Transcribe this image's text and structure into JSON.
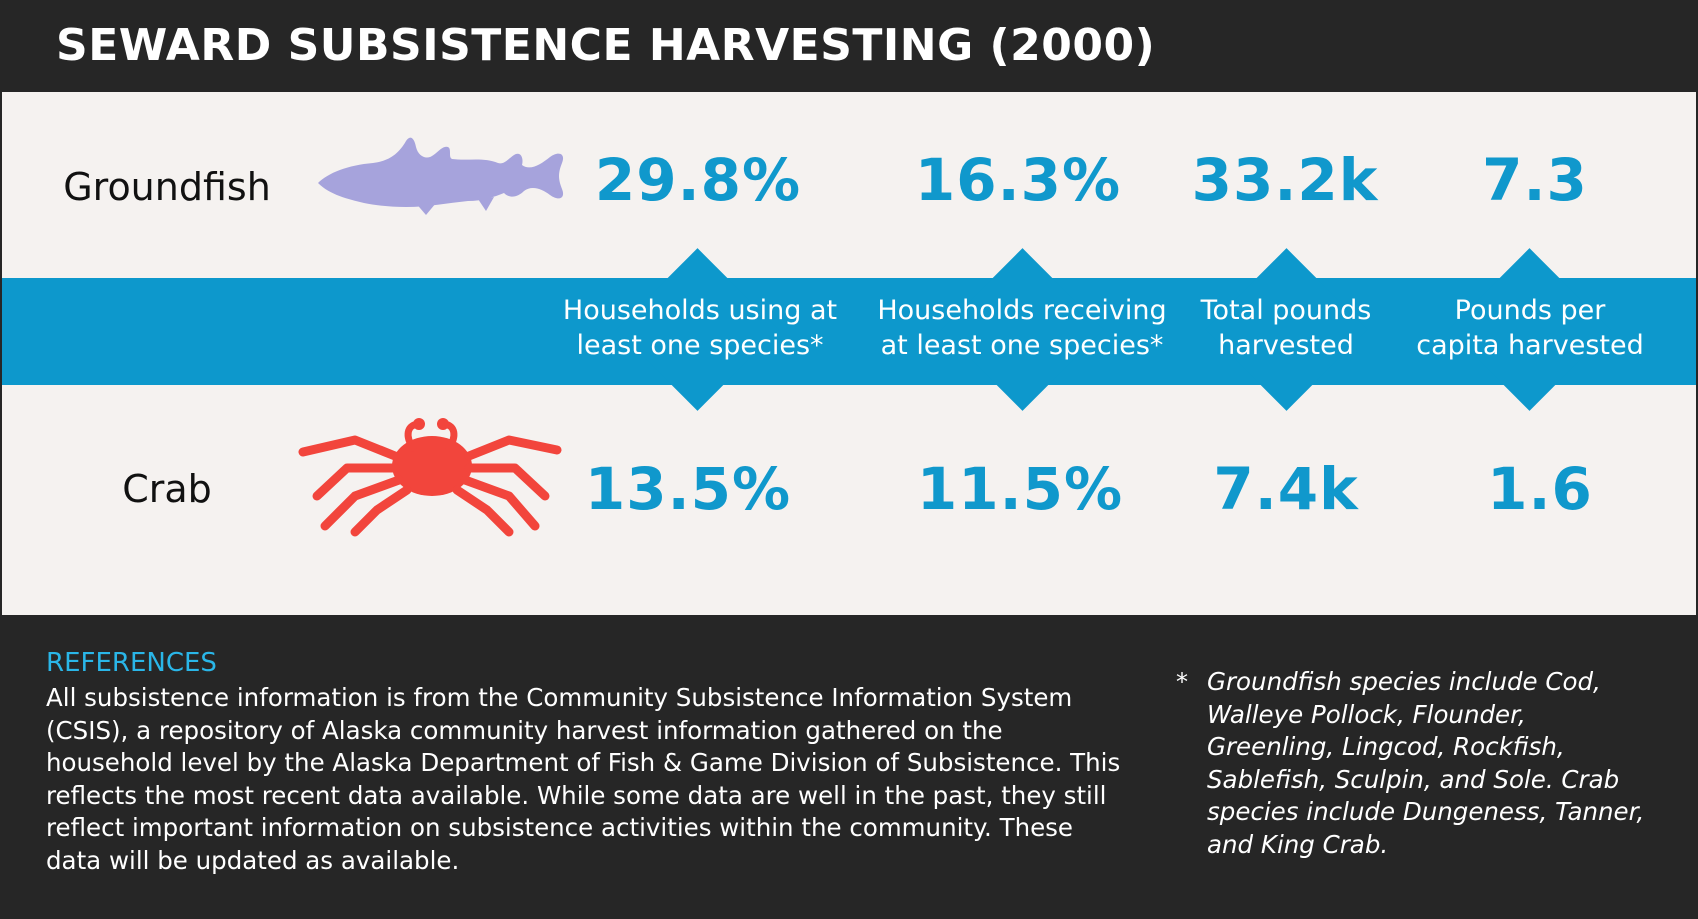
{
  "title": "SEWARD SUBSISTENCE HARVESTING (2000)",
  "colors": {
    "background": "#262626",
    "panel": "#f5f2f0",
    "accent_blue": "#0d98cc",
    "fish": "#a6a3dc",
    "crab": "#f2453c",
    "reference_heading": "#2ab6e8"
  },
  "rows": [
    {
      "label": "Groundfish",
      "icon": "fish-icon",
      "values": [
        "29.8%",
        "16.3%",
        "33.2k",
        "7.3"
      ]
    },
    {
      "label": "Crab",
      "icon": "crab-icon",
      "values": [
        "13.5%",
        "11.5%",
        "7.4k",
        "1.6"
      ]
    }
  ],
  "metrics": [
    {
      "label_lines": [
        "Households using at",
        "least one species*"
      ]
    },
    {
      "label_lines": [
        "Households receiving",
        "at least one species*"
      ]
    },
    {
      "label_lines": [
        "Total pounds",
        "harvested"
      ]
    },
    {
      "label_lines": [
        "Pounds per",
        "capita harvested"
      ]
    }
  ],
  "references": {
    "heading": "REFERENCES",
    "lines": [
      "All subsistence information is from the Community Subsistence Information System",
      "(CSIS), a repository of Alaska community harvest information gathered on the",
      "household level by the Alaska Department of Fish & Game Division of Subsistence. This",
      "reflects the most recent data available. While some data are well in the past, they still",
      "reflect important information on subsistence activities within the community. These",
      "data will be updated as available."
    ]
  },
  "footnote": {
    "marker": "*",
    "lines": [
      "Groundfish species include Cod,",
      "Walleye Pollock, Flounder,",
      "Greenling, Lingcod, Rockfish,",
      "Sablefish, Sculpin, and Sole. Crab",
      "species include Dungeness, Tanner,",
      "and King Crab."
    ]
  }
}
